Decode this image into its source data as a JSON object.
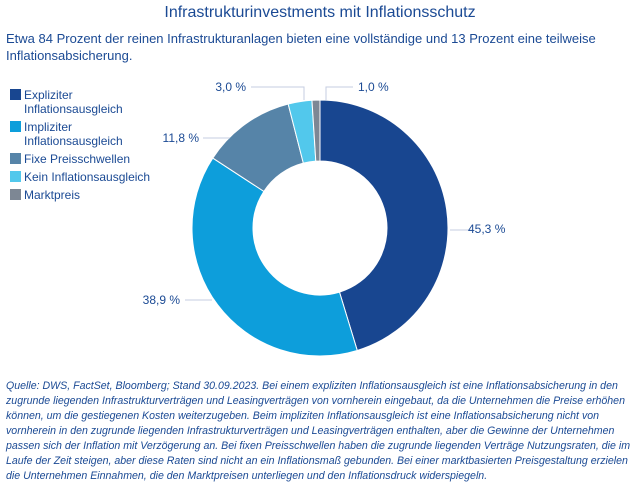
{
  "title": "Infrastrukturinvestments mit Inflationsschutz",
  "subtitle": "Etwa 84 Prozent der reinen Infrastrukturanlagen bieten eine vollständige und 13 Prozent eine teilweise Inflationsabsicherung.",
  "chart_data": {
    "type": "pie",
    "donut": true,
    "legend_position": "left",
    "categories": [
      "Expliziter Inflationsausgleich",
      "Impliziter Inflationsausgleich",
      "Fixe Preisschwellen",
      "Kein Inflationsausgleich",
      "Marktpreis"
    ],
    "values": [
      45.3,
      38.9,
      11.8,
      3.0,
      1.0
    ],
    "data_labels": [
      "45,3 %",
      "38,9 %",
      "11,8 %",
      "3,0 %",
      "1,0 %"
    ],
    "colors": [
      "#184690",
      "#0d9edb",
      "#5684a8",
      "#52c8ec",
      "#7d8794"
    ]
  },
  "footnote": "Quelle: DWS, FactSet, Bloomberg; Stand 30.09.2023. Bei einem expliziten Inflationsausgleich ist eine Inflationsabsicherung in den zugrunde liegenden Infrastrukturverträgen und Leasingverträgen von vornherein eingebaut, da die Unternehmen die Preise erhöhen können, um die gestiegenen Kosten weiterzugeben. Beim impliziten Inflationsausgleich ist eine Inflationsabsicherung nicht von vornherein in den zugrunde liegenden Infrastrukturverträgen und Leasingverträgen enthalten, aber die Gewinne der Unternehmen passen sich der Inflation mit Verzögerung an. Bei fixen Preisschwellen haben die zugrunde liegenden Verträge Nutzungsraten, die im Laufe der Zeit steigen, aber diese Raten sind nicht an ein Inflationsmaß gebunden. Bei einer marktbasierten Preisgestaltung erzielen die Unternehmen Einnahmen, die den Marktpreisen unterliegen und den Inflationsdruck widerspiegeln."
}
